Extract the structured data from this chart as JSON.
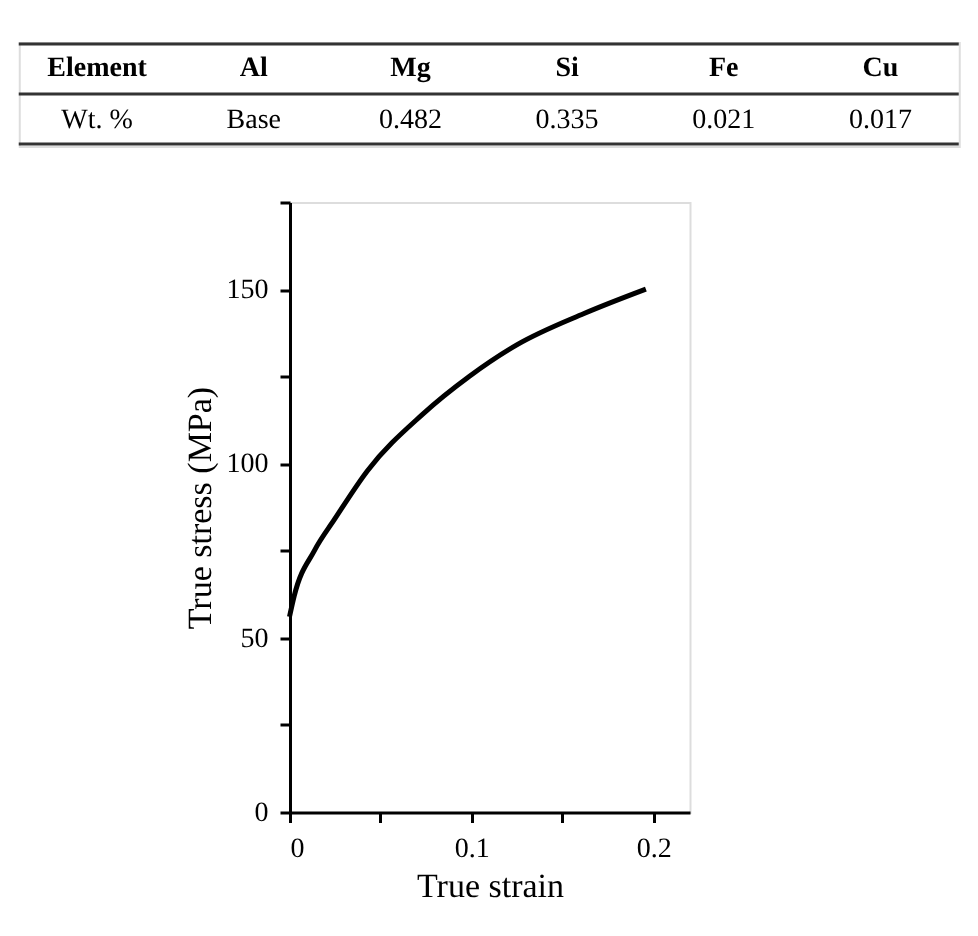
{
  "chart_data": [
    {
      "type": "other",
      "xlabel": "Element",
      "ylabel": "Wt. %",
      "categories": [
        "Al",
        "Mg",
        "Si",
        "Fe",
        "Cu"
      ],
      "value_labels": [
        "Base",
        "0.482",
        "0.335",
        "0.021",
        "0.017"
      ]
    },
    {
      "type": "line",
      "xlabel": "True strain",
      "ylabel": "True stress (MPa)",
      "xlim": [
        0,
        0.22
      ],
      "xticks": [
        0,
        {
          "value": 0.05,
          "label": null
        },
        0.1,
        {
          "value": 0.15,
          "label": null
        },
        0.2
      ],
      "ylim": [
        0,
        175
      ],
      "yticks": [
        0,
        {
          "value": 25,
          "label": null
        },
        50,
        {
          "value": 75,
          "label": null
        },
        100,
        {
          "value": 125,
          "label": null
        },
        150,
        {
          "value": 175,
          "label": null
        }
      ],
      "grid": false,
      "marker": "none",
      "line_style": "solid",
      "series": [
        {
          "color": "#000000",
          "x": [
            0,
            0.0026,
            0.0137,
            0.0248,
            0.043,
            0.073,
            0.099,
            0.125,
            0.162,
            0.196
          ],
          "values": [
            56,
            62,
            75,
            84,
            98,
            114,
            125,
            134,
            143,
            150
          ]
        }
      ]
    }
  ]
}
